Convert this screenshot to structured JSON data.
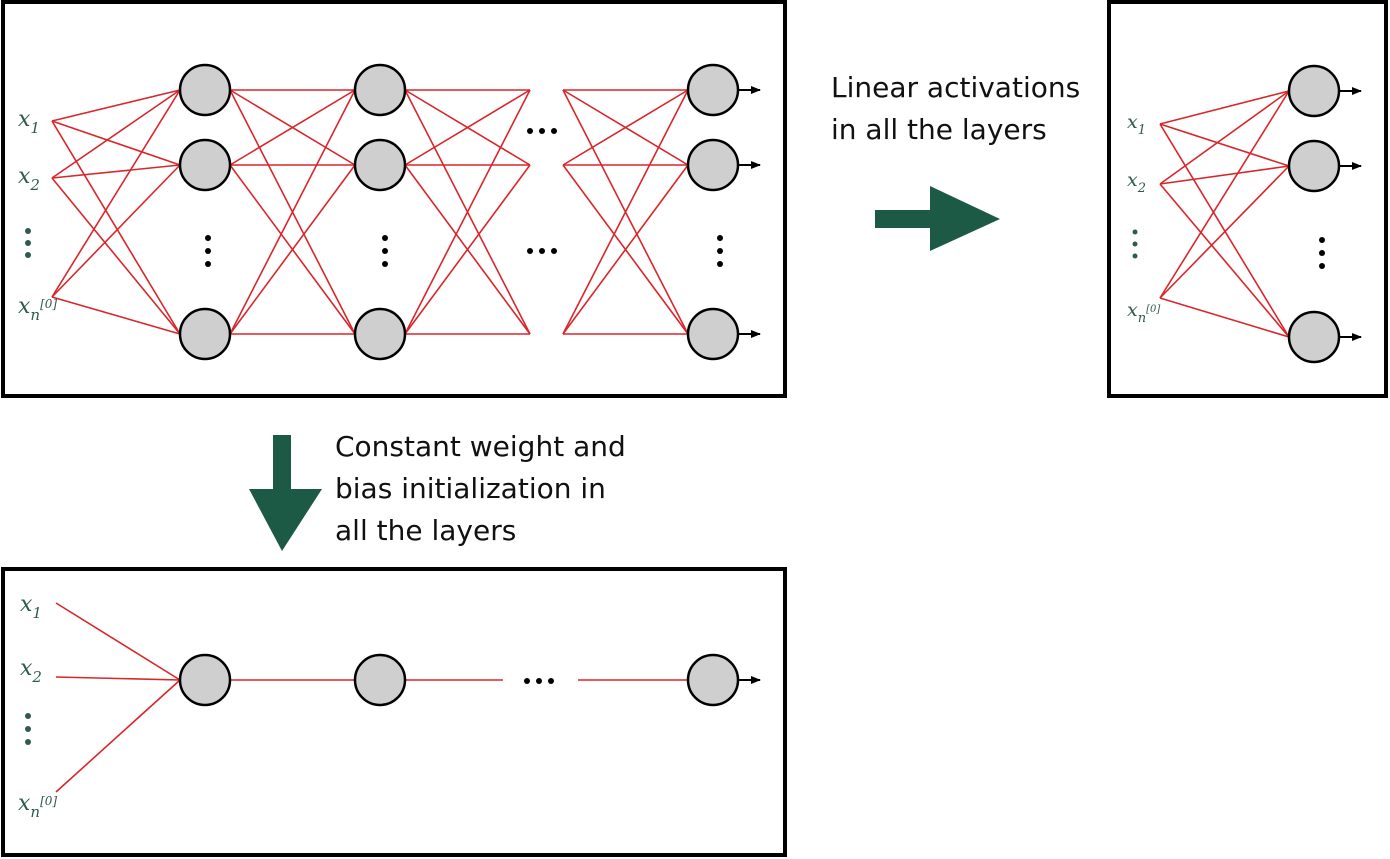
{
  "captions": {
    "right_lines": [
      "Linear activations",
      "in all the layers"
    ],
    "down_lines": [
      "Constant weight and",
      "bias initialization in",
      "all the layers"
    ]
  },
  "input_labels": {
    "x": "x",
    "sub_1": "1",
    "sub_2": "2",
    "sub_n": "n",
    "sup_n": "[0]"
  },
  "colors": {
    "edge": "#d9262b",
    "node_fill": "#cfcfcf",
    "arrow": "#1c5a45",
    "label": "#2f5b4b"
  }
}
